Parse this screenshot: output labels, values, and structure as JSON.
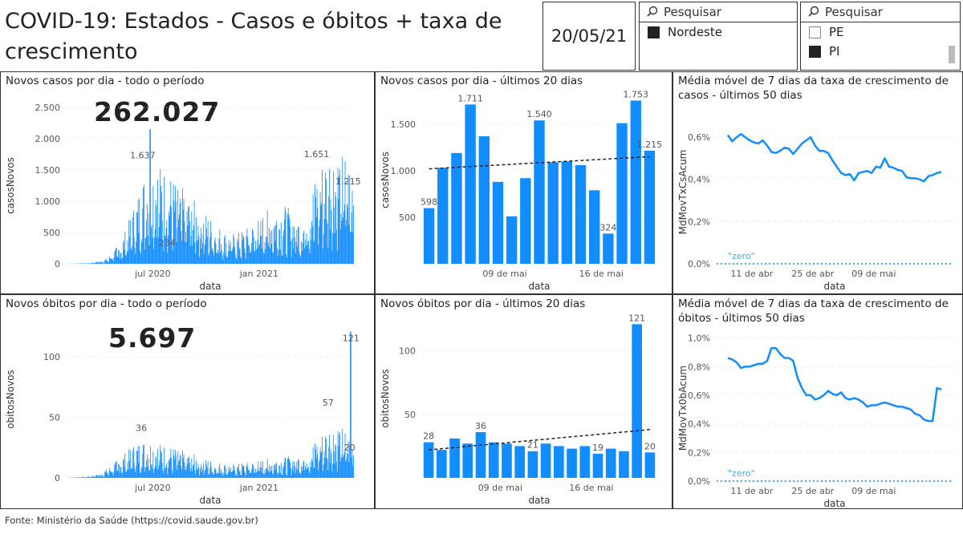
{
  "header": {
    "title": "COVID-19: Estados - Casos e óbitos + taxa de crescimento",
    "date": "20/05/21"
  },
  "slicer_region": {
    "search_placeholder": "Pesquisar",
    "items": [
      {
        "label": "Nordeste",
        "checked": true
      }
    ]
  },
  "slicer_state": {
    "search_placeholder": "Pesquisar",
    "items": [
      {
        "label": "PE",
        "checked": false
      },
      {
        "label": "PI",
        "checked": true
      }
    ]
  },
  "footer": {
    "source": "Fonte: Ministério da Saúde (https://covid.saude.gov.br)"
  },
  "colors": {
    "bar": "#118DFF",
    "line": "#118DFF",
    "trend": "#222222",
    "zero": "#4FA8E8"
  },
  "panels": {
    "casos_total": {
      "title": "Novos casos por dia - todo o período",
      "big_number": "262.027"
    },
    "casos_20": {
      "title": "Novos casos por dia - últimos 20 dias"
    },
    "casos_taxa": {
      "title": "Média móvel de 7 dias da taxa de crescimento de casos - últimos 50 dias"
    },
    "obitos_total": {
      "title": "Novos óbitos por dia - todo o período",
      "big_number": "5.697"
    },
    "obitos_20": {
      "title": "Novos óbitos por dia - últimos 20 dias"
    },
    "obitos_taxa": {
      "title": "Média móvel de 7 dias da taxa de crescimento de óbitos - últimos 50 dias"
    }
  },
  "chart_data": [
    {
      "id": "casos_total",
      "type": "bar",
      "xlabel": "data",
      "ylabel": "casosNovos",
      "ylim": [
        0,
        2500
      ],
      "yticks": [
        0,
        500,
        1000,
        1500,
        2000,
        2500
      ],
      "yticklabels": [
        "0",
        "500",
        "1.000",
        "1.500",
        "2.000",
        "2.500"
      ],
      "xticks": [
        {
          "label": "jul 2020",
          "pos": 0.3
        },
        {
          "label": "jan 2021",
          "pos": 0.67
        }
      ],
      "envelope": [
        [
          0,
          0
        ],
        [
          0.08,
          10
        ],
        [
          0.14,
          60
        ],
        [
          0.19,
          250
        ],
        [
          0.24,
          700
        ],
        [
          0.27,
          1000
        ],
        [
          0.3,
          1200
        ],
        [
          0.34,
          1050
        ],
        [
          0.4,
          850
        ],
        [
          0.46,
          650
        ],
        [
          0.52,
          450
        ],
        [
          0.56,
          330
        ],
        [
          0.6,
          350
        ],
        [
          0.64,
          420
        ],
        [
          0.7,
          600
        ],
        [
          0.76,
          650
        ],
        [
          0.82,
          500
        ],
        [
          0.85,
          800
        ],
        [
          0.88,
          1100
        ],
        [
          0.92,
          1300
        ],
        [
          0.96,
          1250
        ],
        [
          1,
          1100
        ]
      ],
      "annotations": [
        {
          "label": "1.637",
          "value": 1637,
          "pos": 0.265
        },
        {
          "label": "234",
          "value": 234,
          "pos": 0.35
        },
        {
          "label": "1.651",
          "value": 1651,
          "pos": 0.87
        },
        {
          "label": "1.215",
          "value": 1215,
          "pos": 0.98
        }
      ],
      "peak": {
        "value": 2150,
        "pos": 0.29
      }
    },
    {
      "id": "casos_20",
      "type": "bar",
      "xlabel": "data",
      "ylabel": "casosNovos",
      "ylim": [
        0,
        1800
      ],
      "yticks": [
        500,
        1000,
        1500
      ],
      "yticklabels": [
        "500",
        "1.000",
        "1.500"
      ],
      "values": [
        598,
        1030,
        1190,
        1711,
        1370,
        880,
        510,
        920,
        1540,
        1090,
        1100,
        1060,
        790,
        324,
        1510,
        1753,
        1215
      ],
      "labels": {
        "0": "598",
        "3": "1.711",
        "8": "1.540",
        "13": "324",
        "15": "1.753",
        "16": "1.215"
      },
      "xticks": [
        {
          "label": "09 de mai",
          "index": 5.5
        },
        {
          "label": "16 de mai",
          "index": 12.5
        }
      ],
      "trend": [
        1020,
        1150
      ]
    },
    {
      "id": "casos_taxa",
      "type": "line",
      "xlabel": "data",
      "ylabel": "MdMovTxCsAcum",
      "ylim": [
        0,
        0.68
      ],
      "yticks": [
        0,
        0.2,
        0.4,
        0.6
      ],
      "yticklabels": [
        "0,0%",
        "0,2%",
        "0,4%",
        "0,6%"
      ],
      "xticks": [
        {
          "label": "11 de abr",
          "index": 5.5
        },
        {
          "label": "25 de abr",
          "index": 19.5
        },
        {
          "label": "09 de mai",
          "index": 33.5
        }
      ],
      "values": [
        0.61,
        0.58,
        0.6,
        0.615,
        0.6,
        0.585,
        0.575,
        0.57,
        0.585,
        0.56,
        0.53,
        0.525,
        0.535,
        0.55,
        0.545,
        0.52,
        0.545,
        0.57,
        0.585,
        0.6,
        0.56,
        0.535,
        0.535,
        0.525,
        0.49,
        0.46,
        0.43,
        0.42,
        0.425,
        0.395,
        0.43,
        0.435,
        0.44,
        0.43,
        0.46,
        0.455,
        0.5,
        0.46,
        0.455,
        0.445,
        0.44,
        0.41,
        0.405,
        0.405,
        0.4,
        0.39,
        0.415,
        0.42,
        0.43,
        0.435
      ],
      "zero_label": "\"zero\""
    },
    {
      "id": "obitos_total",
      "type": "bar",
      "xlabel": "data",
      "ylabel": "obitosNovos",
      "ylim": [
        0,
        130
      ],
      "yticks": [
        0,
        50,
        100
      ],
      "yticklabels": [
        "0",
        "50",
        "100"
      ],
      "xticks": [
        {
          "label": "jul 2020",
          "pos": 0.3
        },
        {
          "label": "jan 2021",
          "pos": 0.67
        }
      ],
      "envelope": [
        [
          0,
          0
        ],
        [
          0.08,
          1
        ],
        [
          0.12,
          3
        ],
        [
          0.16,
          8
        ],
        [
          0.2,
          14
        ],
        [
          0.24,
          20
        ],
        [
          0.28,
          22
        ],
        [
          0.32,
          20
        ],
        [
          0.38,
          17
        ],
        [
          0.45,
          13
        ],
        [
          0.52,
          9
        ],
        [
          0.58,
          8
        ],
        [
          0.64,
          9
        ],
        [
          0.7,
          11
        ],
        [
          0.76,
          12
        ],
        [
          0.82,
          14
        ],
        [
          0.87,
          22
        ],
        [
          0.91,
          30
        ],
        [
          0.95,
          32
        ],
        [
          0.98,
          25
        ],
        [
          1,
          22
        ]
      ],
      "annotations": [
        {
          "label": "36",
          "value": 36,
          "pos": 0.26
        },
        {
          "label": "57",
          "value": 57,
          "pos": 0.91
        },
        {
          "label": "20",
          "value": 20,
          "pos": 0.985
        }
      ],
      "peak": {
        "value": 121,
        "pos": 0.99
      },
      "peak_label": "121"
    },
    {
      "id": "obitos_20",
      "type": "bar",
      "xlabel": "data",
      "ylabel": "obitosNovos",
      "ylim": [
        0,
        125
      ],
      "yticks": [
        50,
        100
      ],
      "yticklabels": [
        "50",
        "100"
      ],
      "values": [
        28,
        22,
        31,
        27,
        36,
        28,
        27,
        25,
        21,
        27,
        25,
        23,
        25,
        19,
        23,
        21,
        121,
        20
      ],
      "labels": {
        "0": "28",
        "4": "36",
        "8": "21",
        "13": "19",
        "16": "121",
        "17": "20"
      },
      "xticks": [
        {
          "label": "09 de mai",
          "index": 5.5
        },
        {
          "label": "16 de mai",
          "index": 12.5
        }
      ],
      "trend": [
        22,
        38
      ]
    },
    {
      "id": "obitos_taxa",
      "type": "line",
      "xlabel": "data",
      "ylabel": "MdMovTx0bAcum",
      "ylim": [
        0,
        1.02
      ],
      "yticks": [
        0,
        0.2,
        0.4,
        0.6,
        0.8,
        1.0
      ],
      "yticklabels": [
        "0,0%",
        "0,2%",
        "0,4%",
        "0,6%",
        "0,8%",
        "1,0%"
      ],
      "xticks": [
        {
          "label": "11 de abr",
          "index": 5.5
        },
        {
          "label": "25 de abr",
          "index": 19.5
        },
        {
          "label": "09 de mai",
          "index": 33.5
        }
      ],
      "values": [
        0.86,
        0.85,
        0.83,
        0.79,
        0.8,
        0.8,
        0.81,
        0.82,
        0.82,
        0.84,
        0.93,
        0.93,
        0.89,
        0.86,
        0.86,
        0.84,
        0.72,
        0.65,
        0.6,
        0.6,
        0.57,
        0.58,
        0.6,
        0.63,
        0.61,
        0.6,
        0.62,
        0.58,
        0.57,
        0.58,
        0.57,
        0.55,
        0.52,
        0.53,
        0.53,
        0.54,
        0.55,
        0.54,
        0.53,
        0.52,
        0.52,
        0.51,
        0.5,
        0.47,
        0.46,
        0.43,
        0.42,
        0.42,
        0.65,
        0.64
      ],
      "zero_label": "\"zero\""
    }
  ]
}
